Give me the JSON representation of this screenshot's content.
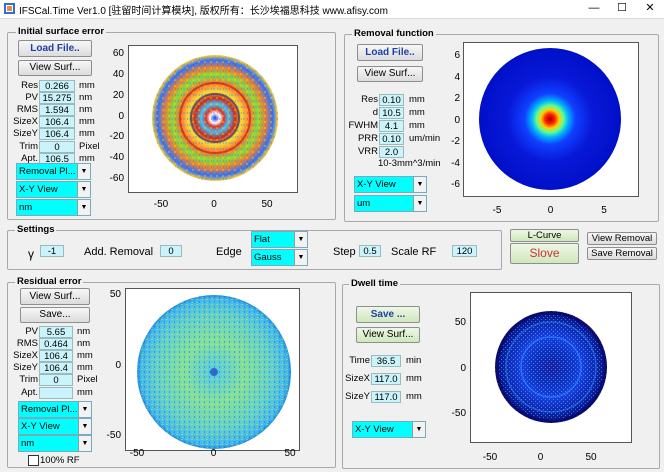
{
  "window": {
    "title": "IFSCal.Time Ver1.0 [驻留时间计算模块], 版权所有：长沙埃福思科技 www.afisy.com",
    "min": "—",
    "max": "☐",
    "close": "✕"
  },
  "initial": {
    "title": "Initial surface error",
    "load": "Load File..",
    "view": "View Surf...",
    "rows": [
      {
        "label": "Res",
        "value": "0.266",
        "unit": "mm"
      },
      {
        "label": "PV",
        "value": "15.275",
        "unit": "nm"
      },
      {
        "label": "RMS",
        "value": "1.594",
        "unit": "nm"
      },
      {
        "label": "SizeX",
        "value": "106.4",
        "unit": "mm"
      },
      {
        "label": "SizeY",
        "value": "106.4",
        "unit": "mm"
      },
      {
        "label": "Trim",
        "value": "0",
        "unit": "Pixel"
      },
      {
        "label": "Apt.",
        "value": "106.5",
        "unit": "mm"
      }
    ],
    "sel1": "Removal Pl...",
    "sel2": "X-Y View",
    "sel3": "nm",
    "yticks": [
      "60",
      "40",
      "20",
      "0",
      "-20",
      "-40",
      "-60"
    ],
    "xticks": [
      "-50",
      "0",
      "50"
    ]
  },
  "removal": {
    "title": "Removal function",
    "load": "Load File..",
    "view": "View Surf...",
    "rows": [
      {
        "label": "Res",
        "value": "0.10",
        "unit": "mm"
      },
      {
        "label": "d",
        "value": "10.5",
        "unit": "mm"
      },
      {
        "label": "FWHM",
        "value": "4.1",
        "unit": "mm"
      },
      {
        "label": "PRR",
        "value": "0.10",
        "unit": "um/min"
      },
      {
        "label": "VRR",
        "value": "2.0",
        "unit": ""
      }
    ],
    "vrr_unit": "10-3mm^3/min",
    "sel1": "X-Y View",
    "sel2": "um",
    "yticks": [
      "6",
      "4",
      "2",
      "0",
      "-2",
      "-4",
      "-6"
    ],
    "xticks": [
      "-5",
      "0",
      "5"
    ]
  },
  "settings": {
    "title": "Settings",
    "gamma_label": "γ",
    "gamma": "-1",
    "add_label": "Add. Removal",
    "add": "0",
    "edge_label": "Edge",
    "edge1": "Flat",
    "edge2": "Gauss",
    "step_label": "Step",
    "step": "0.5",
    "scale_label": "Scale RF",
    "scale": "120"
  },
  "actions": {
    "lcurve": "L-Curve",
    "slove": "Slove",
    "view_removal": "View Removal",
    "save_removal": "Save Removal"
  },
  "residual": {
    "title": "Residual error",
    "view": "View Surf...",
    "save": "Save...",
    "rows": [
      {
        "label": "PV",
        "value": "5.65",
        "unit": "nm"
      },
      {
        "label": "RMS",
        "value": "0.464",
        "unit": "nm"
      },
      {
        "label": "SizeX",
        "value": "106.4",
        "unit": "mm"
      },
      {
        "label": "SizeY",
        "value": "106.4",
        "unit": "mm"
      },
      {
        "label": "Trim",
        "value": "0",
        "unit": "Pixel"
      },
      {
        "label": "Apt.",
        "value": "",
        "unit": "mm"
      }
    ],
    "sel1": "Removal Pl...",
    "sel2": "X-Y View",
    "sel3": "nm",
    "check": "100% RF",
    "yticks": [
      "50",
      "0",
      "-50"
    ],
    "xticks": [
      "-50",
      "0",
      "50"
    ]
  },
  "dwell": {
    "title": "Dwell time",
    "save": "Save ...",
    "view": "View Surf...",
    "rows": [
      {
        "label": "Time",
        "value": "36.5",
        "unit": "min"
      },
      {
        "label": "SizeX",
        "value": "117.0",
        "unit": "mm"
      },
      {
        "label": "SizeY",
        "value": "117.0",
        "unit": "mm"
      }
    ],
    "sel1": "X-Y View",
    "yticks": [
      "50",
      "0",
      "-50"
    ],
    "xticks": [
      "-50",
      "0",
      "50"
    ]
  }
}
